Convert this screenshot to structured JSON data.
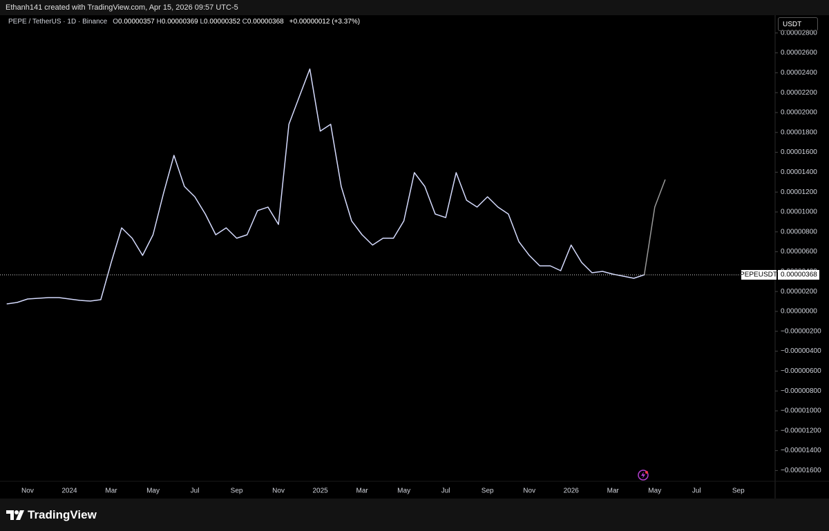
{
  "header": {
    "title": "Ethanh141 created with TradingView.com, Apr 15, 2026 09:57 UTC-5"
  },
  "legend": {
    "symbol": "PEPE / TetherUS · 1D · Binance",
    "ohlc": [
      {
        "key": "O",
        "text": "0.00000357"
      },
      {
        "key": "H",
        "text": "0.00000369"
      },
      {
        "key": "L",
        "text": "0.00000352"
      },
      {
        "key": "C",
        "text": "0.00000368"
      }
    ],
    "change": "+0.00000012 (+3.37%)"
  },
  "currency": "USDT",
  "footer": {
    "brand": "TradingView"
  },
  "chart_data": {
    "type": "line",
    "categories": [
      null,
      null,
      "Nov",
      null,
      null,
      null,
      "2024",
      null,
      null,
      null,
      "Mar",
      null,
      null,
      null,
      "May",
      null,
      null,
      null,
      "Jul",
      null,
      null,
      null,
      "Sep",
      null,
      null,
      null,
      "Nov",
      null,
      null,
      null,
      "2025",
      null,
      null,
      null,
      "Mar",
      null,
      null,
      null,
      "May",
      null,
      null,
      null,
      "Jul",
      null,
      null,
      null,
      "Sep",
      null,
      null,
      null,
      "Nov",
      null,
      null,
      null,
      "2026",
      null,
      null,
      null,
      "Mar",
      null,
      null,
      null,
      "May",
      null,
      null,
      null,
      "Jul",
      null,
      null,
      null,
      "Sep"
    ],
    "series": [
      {
        "name": "PEPEUSDT",
        "color": "#d6dcff",
        "values": [
          7.6e-07,
          9e-07,
          1.25e-06,
          1.32e-06,
          1.39e-06,
          1.39e-06,
          1.25e-06,
          1.11e-06,
          1.04e-06,
          1.18e-06,
          4.93e-06,
          8.4e-06,
          7.36e-06,
          5.63e-06,
          7.71e-06,
          1.188e-05,
          1.569e-05,
          1.257e-05,
          1.153e-05,
          9.79e-06,
          7.71e-06,
          8.4e-06,
          7.36e-06,
          7.71e-06,
          1.014e-05,
          1.049e-05,
          8.75e-06,
          1.882e-05,
          2.16e-05,
          2.438e-05,
          1.813e-05,
          1.882e-05,
          1.257e-05,
          9.1e-06,
          7.71e-06,
          6.67e-06,
          7.36e-06,
          7.36e-06,
          9.1e-06,
          1.396e-05,
          1.257e-05,
          9.79e-06,
          9.44e-06,
          1.396e-05,
          1.118e-05,
          1.049e-05,
          1.153e-05,
          1.049e-05,
          9.79e-06,
          7.01e-06,
          5.63e-06,
          4.58e-06,
          4.58e-06,
          4.1e-06,
          6.67e-06,
          4.93e-06,
          3.89e-06,
          4.03e-06,
          3.75e-06,
          3.54e-06,
          3.33e-06,
          3.68e-06,
          null,
          null,
          null,
          null,
          null,
          null,
          null,
          null,
          null
        ]
      },
      {
        "color": "#9a9a9a",
        "values": [
          null,
          null,
          null,
          null,
          null,
          null,
          null,
          null,
          null,
          null,
          null,
          null,
          null,
          null,
          null,
          null,
          null,
          null,
          null,
          null,
          null,
          null,
          null,
          null,
          null,
          null,
          null,
          null,
          null,
          null,
          null,
          null,
          null,
          null,
          null,
          null,
          null,
          null,
          null,
          null,
          null,
          null,
          null,
          null,
          null,
          null,
          null,
          null,
          null,
          null,
          null,
          null,
          null,
          null,
          null,
          null,
          null,
          null,
          null,
          null,
          null,
          3.68e-06,
          1.049e-05,
          1.326e-05,
          null,
          null,
          null,
          null,
          null,
          null,
          null
        ]
      }
    ],
    "last_price": 3.68e-06,
    "ylim": [
      -1.868e-05,
      2.979e-05
    ],
    "yticks": [
      {
        "value": 2.8e-05,
        "label": "0.00002800"
      },
      {
        "value": 2.6e-05,
        "label": "0.00002600"
      },
      {
        "value": 2.4e-05,
        "label": "0.00002400"
      },
      {
        "value": 2.2e-05,
        "label": "0.00002200"
      },
      {
        "value": 2e-05,
        "label": "0.00002000"
      },
      {
        "value": 1.8e-05,
        "label": "0.00001800"
      },
      {
        "value": 1.6e-05,
        "label": "0.00001600"
      },
      {
        "value": 1.4e-05,
        "label": "0.00001400"
      },
      {
        "value": 1.2e-05,
        "label": "0.00001200"
      },
      {
        "value": 1e-05,
        "label": "0.00001000"
      },
      {
        "value": 8e-06,
        "label": "0.00000800"
      },
      {
        "value": 6e-06,
        "label": "0.00000600"
      },
      {
        "value": 4e-06,
        "label": "0.00000400"
      },
      {
        "value": 2e-06,
        "label": "0.00000200"
      },
      {
        "value": 0,
        "label": "0.00000000"
      },
      {
        "value": -2e-06,
        "label": "−0.00000200"
      },
      {
        "value": -4e-06,
        "label": "−0.00000400"
      },
      {
        "value": -6e-06,
        "label": "−0.00000600"
      },
      {
        "value": -8e-06,
        "label": "−0.00000800"
      },
      {
        "value": -1e-05,
        "label": "−0.00001000"
      },
      {
        "value": -1.2e-05,
        "label": "−0.00001200"
      },
      {
        "value": -1.4e-05,
        "label": "−0.00001400"
      },
      {
        "value": -1.6e-05,
        "label": "−0.00001600"
      }
    ],
    "grid": false
  }
}
